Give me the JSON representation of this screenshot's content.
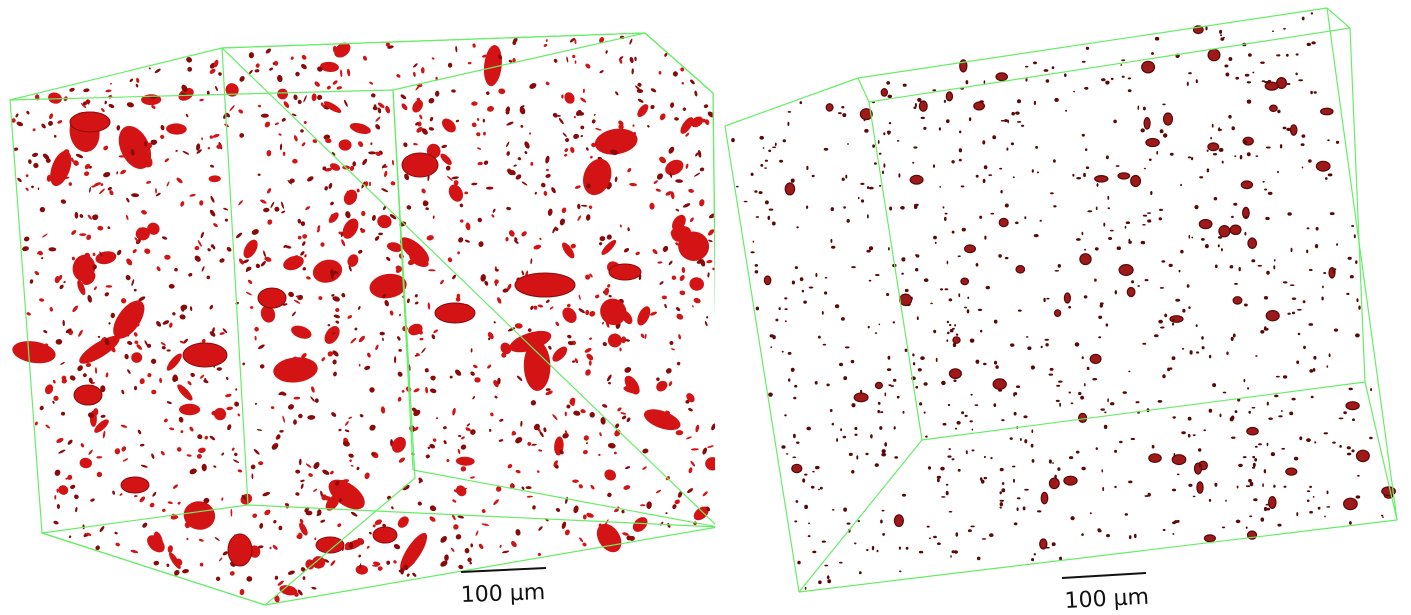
{
  "panels": [
    {
      "id": "left",
      "scale_bar_label": "100 µm",
      "blob_color": "#d41414",
      "edge_color": "#8a0a0a",
      "box_color": "#66ee66",
      "density": "high"
    },
    {
      "id": "right",
      "scale_bar_label": "100 µm",
      "blob_color": "#9e1a1a",
      "edge_color": "#5a0808",
      "box_color": "#66ee66",
      "density": "low"
    }
  ]
}
